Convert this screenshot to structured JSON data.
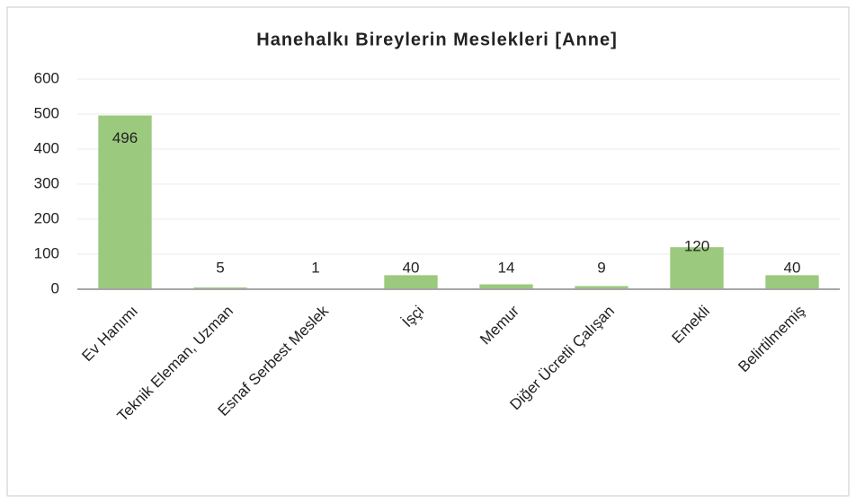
{
  "chart_data": {
    "type": "bar",
    "title": "Hanehalkı Bireylerin Meslekleri [Anne]",
    "categories": [
      "Ev Hanımı",
      "Teknik Eleman, Uzman",
      "Esnaf Serbest Meslek",
      "İşçi",
      "Memur",
      "Diğer Ücretli Çalışan",
      "Emekli",
      "Belirtilmemiş"
    ],
    "values": [
      496,
      5,
      1,
      40,
      14,
      9,
      120,
      40
    ],
    "color": "#9bc97e",
    "ylim": [
      0,
      600
    ],
    "yticks": [
      0,
      100,
      200,
      300,
      400,
      500,
      600
    ],
    "grid": true
  }
}
